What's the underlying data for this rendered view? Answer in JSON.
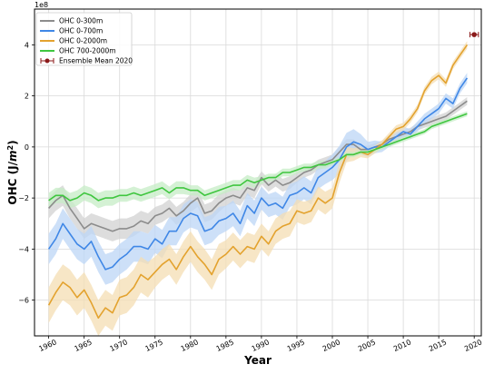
{
  "chart_data": {
    "type": "line",
    "xlabel": "Year",
    "ylabel": "OHC (J/m²)",
    "ylabel_parts": [
      "OHC (J/",
      "m",
      "2",
      ")"
    ],
    "scale_label": "1e8",
    "xlim": [
      1958,
      2021
    ],
    "ylim": [
      -7.4,
      5.4
    ],
    "xticks": [
      1960,
      1965,
      1970,
      1975,
      1980,
      1985,
      1990,
      1995,
      2000,
      2005,
      2010,
      2015,
      2020
    ],
    "xtick_labels": [
      "1960",
      "1965",
      "1970",
      "1975",
      "1980",
      "1985",
      "1990",
      "1995",
      "2000",
      "2005",
      "2010",
      "2015",
      "2020"
    ],
    "yticks": [
      -6,
      -4,
      -2,
      0,
      2,
      4
    ],
    "ytick_labels": [
      "−6",
      "−4",
      "−2",
      "0",
      "2",
      "4"
    ],
    "grid": true,
    "legend_position": "top-left",
    "x": [
      1960,
      1961,
      1962,
      1963,
      1964,
      1965,
      1966,
      1967,
      1968,
      1969,
      1970,
      1971,
      1972,
      1973,
      1974,
      1975,
      1976,
      1977,
      1978,
      1979,
      1980,
      1981,
      1982,
      1983,
      1984,
      1985,
      1986,
      1987,
      1988,
      1989,
      1990,
      1991,
      1992,
      1993,
      1994,
      1995,
      1996,
      1997,
      1998,
      1999,
      2000,
      2001,
      2002,
      2003,
      2004,
      2005,
      2006,
      2007,
      2008,
      2009,
      2010,
      2011,
      2012,
      2013,
      2014,
      2015,
      2016,
      2017,
      2018,
      2019
    ],
    "series": [
      {
        "name": "OHC 0-300m",
        "color": "#8c8c8c",
        "band": "#d2d2d2",
        "values": [
          -2.4,
          -2.1,
          -1.9,
          -2.4,
          -2.8,
          -3.2,
          -3.0,
          -3.1,
          -3.2,
          -3.3,
          -3.2,
          -3.2,
          -3.1,
          -2.9,
          -3.0,
          -2.7,
          -2.6,
          -2.4,
          -2.7,
          -2.5,
          -2.2,
          -2.0,
          -2.6,
          -2.5,
          -2.2,
          -2.0,
          -1.9,
          -2.0,
          -1.6,
          -1.7,
          -1.2,
          -1.5,
          -1.3,
          -1.5,
          -1.4,
          -1.2,
          -1.0,
          -0.9,
          -0.7,
          -0.6,
          -0.5,
          -0.2,
          0.1,
          0.1,
          -0.1,
          -0.1,
          0.0,
          0.1,
          0.3,
          0.4,
          0.5,
          0.6,
          0.8,
          0.9,
          1.0,
          1.1,
          1.2,
          1.4,
          1.6,
          1.8
        ],
        "uncertainty": [
          0.4,
          0.4,
          0.4,
          0.4,
          0.4,
          0.4,
          0.4,
          0.4,
          0.4,
          0.4,
          0.4,
          0.4,
          0.4,
          0.4,
          0.4,
          0.35,
          0.35,
          0.35,
          0.35,
          0.35,
          0.35,
          0.35,
          0.35,
          0.35,
          0.35,
          0.3,
          0.3,
          0.3,
          0.3,
          0.3,
          0.25,
          0.25,
          0.25,
          0.25,
          0.25,
          0.2,
          0.2,
          0.2,
          0.2,
          0.2,
          0.2,
          0.2,
          0.2,
          0.2,
          0.15,
          0.15,
          0.15,
          0.15,
          0.15,
          0.15,
          0.15,
          0.15,
          0.15,
          0.15,
          0.15,
          0.15,
          0.15,
          0.15,
          0.15,
          0.15
        ]
      },
      {
        "name": "OHC 0-700m",
        "color": "#3f87e6",
        "band": "#bcd5f5",
        "values": [
          -4.0,
          -3.6,
          -3.0,
          -3.4,
          -3.8,
          -4.0,
          -3.7,
          -4.3,
          -4.8,
          -4.7,
          -4.4,
          -4.2,
          -3.9,
          -3.9,
          -4.0,
          -3.6,
          -3.8,
          -3.3,
          -3.3,
          -2.8,
          -2.6,
          -2.7,
          -3.3,
          -3.2,
          -2.9,
          -2.8,
          -2.6,
          -3.0,
          -2.3,
          -2.6,
          -2.0,
          -2.3,
          -2.2,
          -2.4,
          -1.9,
          -1.8,
          -1.6,
          -1.8,
          -1.2,
          -1.0,
          -0.8,
          -0.5,
          0.0,
          0.2,
          0.1,
          -0.1,
          0.0,
          0.0,
          0.2,
          0.4,
          0.6,
          0.5,
          0.8,
          1.1,
          1.3,
          1.5,
          1.9,
          1.7,
          2.3,
          2.7
        ],
        "uncertainty": [
          0.6,
          0.6,
          0.6,
          0.6,
          0.6,
          0.6,
          0.6,
          0.6,
          0.6,
          0.6,
          0.6,
          0.6,
          0.6,
          0.6,
          0.6,
          0.55,
          0.55,
          0.55,
          0.55,
          0.55,
          0.55,
          0.55,
          0.55,
          0.55,
          0.55,
          0.5,
          0.5,
          0.5,
          0.5,
          0.5,
          0.45,
          0.45,
          0.45,
          0.45,
          0.45,
          0.45,
          0.45,
          0.45,
          0.45,
          0.45,
          0.5,
          0.55,
          0.55,
          0.5,
          0.4,
          0.3,
          0.25,
          0.2,
          0.2,
          0.2,
          0.2,
          0.2,
          0.2,
          0.2,
          0.2,
          0.2,
          0.2,
          0.2,
          0.2,
          0.2
        ]
      },
      {
        "name": "OHC 0-2000m",
        "color": "#e3a22e",
        "band": "#f4ddb3",
        "values": [
          -6.2,
          -5.7,
          -5.3,
          -5.5,
          -5.9,
          -5.6,
          -6.1,
          -6.7,
          -6.3,
          -6.5,
          -5.9,
          -5.8,
          -5.5,
          -5.0,
          -5.2,
          -4.9,
          -4.6,
          -4.4,
          -4.8,
          -4.3,
          -3.9,
          -4.3,
          -4.6,
          -5.0,
          -4.4,
          -4.2,
          -3.9,
          -4.2,
          -3.9,
          -4.0,
          -3.5,
          -3.8,
          -3.3,
          -3.1,
          -3.0,
          -2.5,
          -2.6,
          -2.5,
          -2.0,
          -2.2,
          -2.0,
          -1.0,
          -0.3,
          -0.3,
          -0.2,
          -0.3,
          -0.1,
          0.1,
          0.4,
          0.7,
          0.8,
          1.1,
          1.5,
          2.2,
          2.6,
          2.8,
          2.5,
          3.2,
          3.6,
          4.0
        ],
        "uncertainty": [
          0.7,
          0.7,
          0.7,
          0.7,
          0.7,
          0.7,
          0.7,
          0.7,
          0.7,
          0.7,
          0.7,
          0.7,
          0.7,
          0.7,
          0.7,
          0.6,
          0.6,
          0.6,
          0.6,
          0.6,
          0.6,
          0.6,
          0.6,
          0.6,
          0.6,
          0.55,
          0.55,
          0.55,
          0.55,
          0.55,
          0.5,
          0.5,
          0.5,
          0.5,
          0.5,
          0.45,
          0.45,
          0.45,
          0.45,
          0.45,
          0.4,
          0.4,
          0.3,
          0.25,
          0.2,
          0.15,
          0.15,
          0.15,
          0.15,
          0.15,
          0.15,
          0.15,
          0.15,
          0.15,
          0.15,
          0.15,
          0.15,
          0.15,
          0.15,
          0.15
        ]
      },
      {
        "name": "OHC 700-2000m",
        "color": "#3fc63f",
        "band": "#c6ecc6",
        "values": [
          -2.1,
          -1.9,
          -1.9,
          -2.1,
          -2.0,
          -1.8,
          -1.9,
          -2.1,
          -2.0,
          -2.0,
          -1.9,
          -1.9,
          -1.8,
          -1.9,
          -1.8,
          -1.7,
          -1.6,
          -1.8,
          -1.6,
          -1.6,
          -1.7,
          -1.7,
          -1.9,
          -1.8,
          -1.7,
          -1.6,
          -1.5,
          -1.5,
          -1.3,
          -1.4,
          -1.3,
          -1.2,
          -1.2,
          -1.0,
          -1.0,
          -0.9,
          -0.8,
          -0.8,
          -0.7,
          -0.7,
          -0.6,
          -0.5,
          -0.3,
          -0.3,
          -0.2,
          -0.2,
          -0.1,
          0.0,
          0.1,
          0.2,
          0.3,
          0.4,
          0.5,
          0.6,
          0.8,
          0.9,
          1.0,
          1.1,
          1.2,
          1.3
        ],
        "uncertainty": [
          0.3,
          0.3,
          0.3,
          0.3,
          0.3,
          0.3,
          0.3,
          0.3,
          0.3,
          0.3,
          0.25,
          0.25,
          0.25,
          0.25,
          0.25,
          0.25,
          0.25,
          0.25,
          0.25,
          0.25,
          0.2,
          0.2,
          0.2,
          0.2,
          0.2,
          0.2,
          0.2,
          0.2,
          0.2,
          0.2,
          0.15,
          0.15,
          0.15,
          0.15,
          0.15,
          0.15,
          0.15,
          0.15,
          0.15,
          0.15,
          0.1,
          0.1,
          0.1,
          0.1,
          0.1,
          0.1,
          0.1,
          0.1,
          0.1,
          0.1,
          0.1,
          0.1,
          0.1,
          0.1,
          0.1,
          0.1,
          0.1,
          0.1,
          0.1,
          0.1
        ]
      }
    ],
    "ensemble_mean": {
      "name": "Ensemble Mean 2020",
      "x": 2020,
      "y": 4.4,
      "xerr": 0.6,
      "color": "#8b1a1a"
    }
  }
}
